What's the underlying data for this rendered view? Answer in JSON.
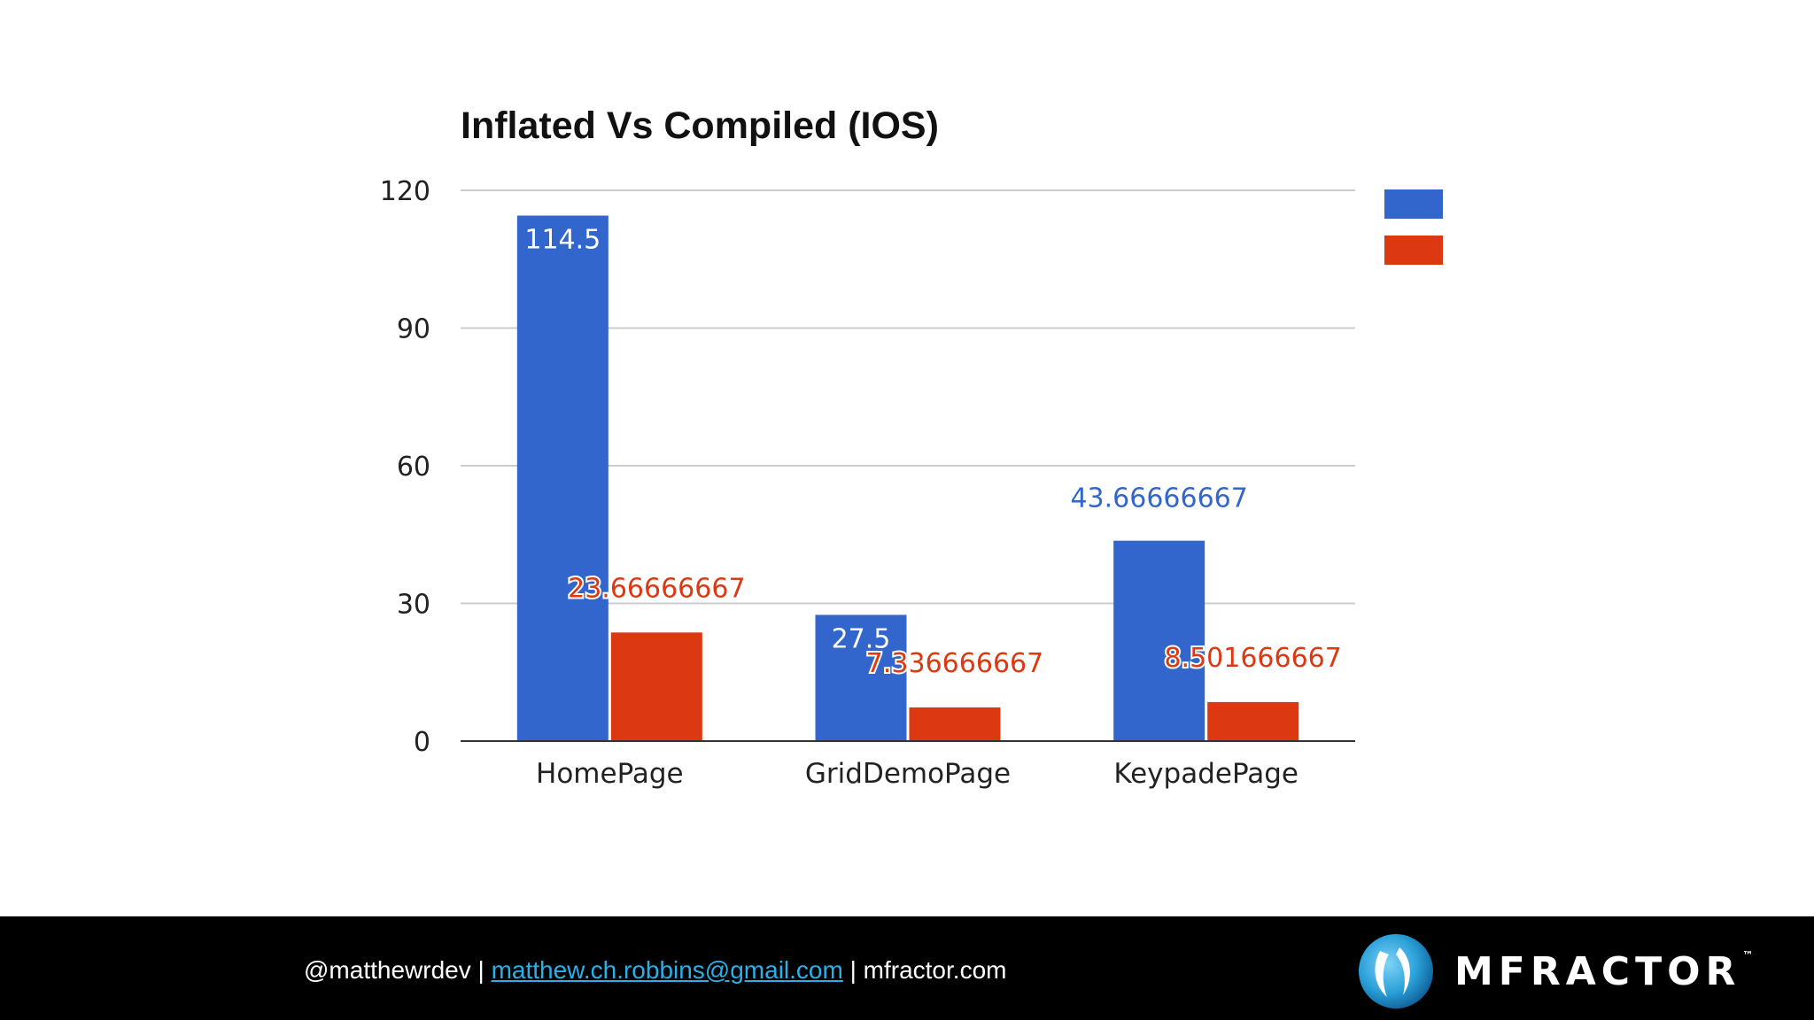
{
  "chart_data": {
    "type": "bar",
    "title": "Inflated Vs Compiled (IOS)",
    "xlabel": "",
    "ylabel": "",
    "categories": [
      "HomePage",
      "GridDemoPage",
      "KeypadePage"
    ],
    "series": [
      {
        "color": "#3366cc",
        "values": [
          114.5,
          27.5,
          43.66666667
        ],
        "labels": [
          "114.5",
          "27.5",
          "43.66666667"
        ]
      },
      {
        "color": "#dc3912",
        "values": [
          23.66666667,
          7.336666667,
          8.501666667
        ],
        "labels": [
          "23.66666667",
          "7.336666667",
          "8.501666667"
        ]
      }
    ],
    "ylim": [
      0,
      120
    ],
    "yticks": [
      "0",
      "30",
      "60",
      "90",
      "120"
    ],
    "grid": true,
    "legend": "right"
  },
  "footer": {
    "handle": "@matthewrdev",
    "separator": "|",
    "email": "matthew.ch.robbins@gmail.com",
    "website": "mfractor.com",
    "brand": "MFRACTOR",
    "trademark": "™"
  }
}
